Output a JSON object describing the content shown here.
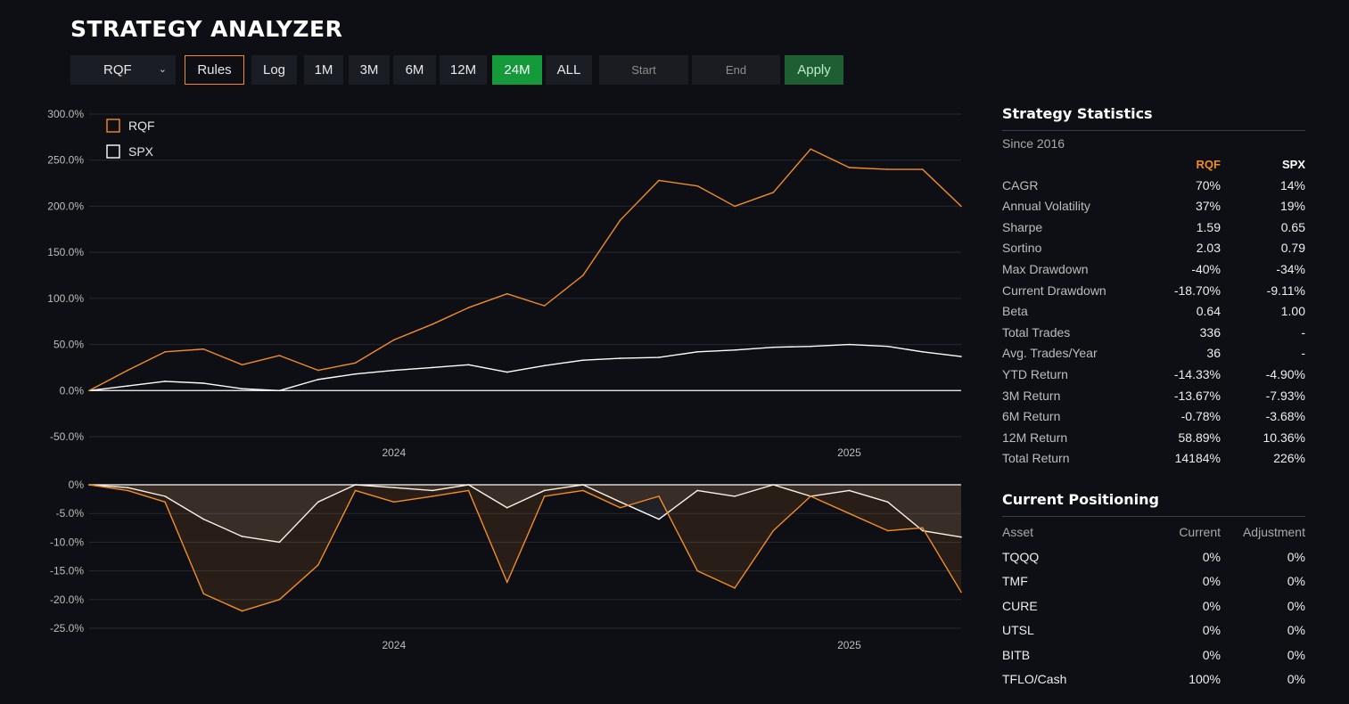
{
  "app": {
    "title": "STRATEGY ANALYZER"
  },
  "toolbar": {
    "strategy_select": "RQF",
    "rules": "Rules",
    "log": "Log",
    "ranges": [
      "1M",
      "3M",
      "6M",
      "12M",
      "24M",
      "ALL"
    ],
    "active_range": "24M",
    "start_placeholder": "Start",
    "end_placeholder": "End",
    "apply": "Apply"
  },
  "colors": {
    "rqf": "#f28c28",
    "spx": "#ffffff",
    "accent_green": "#149a3b",
    "background": "#0d0f15"
  },
  "icons": {
    "select_chevron": "chevron-down-icon"
  },
  "chart_data": [
    {
      "type": "line",
      "legend": [
        "RQF",
        "SPX"
      ],
      "legend_position": "top-left",
      "y_tick_labels": [
        "300.0%",
        "250.0%",
        "200.0%",
        "150.0%",
        "100.0%",
        "50.0%",
        "0.0%",
        "-50.0%"
      ],
      "ylim": [
        -50,
        300
      ],
      "x_tick_labels": [
        "2024",
        "2025"
      ],
      "x_range": [
        "2023-05",
        "2025-04"
      ],
      "grid": true,
      "series": [
        {
          "name": "RQF",
          "x": [
            "2023-05-01",
            "2023-06-01",
            "2023-07-01",
            "2023-08-01",
            "2023-09-01",
            "2023-10-01",
            "2023-11-01",
            "2023-12-01",
            "2024-01-01",
            "2024-02-01",
            "2024-03-01",
            "2024-04-01",
            "2024-05-01",
            "2024-06-01",
            "2024-07-01",
            "2024-08-01",
            "2024-09-01",
            "2024-10-01",
            "2024-11-01",
            "2024-12-01",
            "2025-01-01",
            "2025-02-01",
            "2025-03-01",
            "2025-04-01"
          ],
          "values": [
            0,
            22,
            42,
            45,
            28,
            38,
            22,
            30,
            55,
            72,
            90,
            105,
            92,
            125,
            185,
            228,
            222,
            200,
            215,
            262,
            242,
            240,
            240,
            200
          ]
        },
        {
          "name": "SPX",
          "x": [
            "2023-05-01",
            "2023-06-01",
            "2023-07-01",
            "2023-08-01",
            "2023-09-01",
            "2023-10-01",
            "2023-11-01",
            "2023-12-01",
            "2024-01-01",
            "2024-02-01",
            "2024-03-01",
            "2024-04-01",
            "2024-05-01",
            "2024-06-01",
            "2024-07-01",
            "2024-08-01",
            "2024-09-01",
            "2024-10-01",
            "2024-11-01",
            "2024-12-01",
            "2025-01-01",
            "2025-02-01",
            "2025-03-01",
            "2025-04-01"
          ],
          "values": [
            0,
            5,
            10,
            8,
            2,
            0,
            12,
            18,
            22,
            25,
            28,
            20,
            27,
            33,
            35,
            36,
            42,
            44,
            47,
            48,
            50,
            48,
            42,
            37
          ]
        }
      ]
    },
    {
      "type": "area",
      "y_tick_labels": [
        "0%",
        "-5.0%",
        "-10.0%",
        "-15.0%",
        "-20.0%",
        "-25.0%"
      ],
      "ylim": [
        -25,
        0
      ],
      "x_tick_labels": [
        "2024",
        "2025"
      ],
      "series": [
        {
          "name": "RQF",
          "x": [
            "2023-05-01",
            "2023-06-01",
            "2023-07-01",
            "2023-08-01",
            "2023-09-01",
            "2023-10-01",
            "2023-11-01",
            "2023-12-01",
            "2024-01-01",
            "2024-02-01",
            "2024-03-01",
            "2024-04-01",
            "2024-05-01",
            "2024-06-01",
            "2024-07-01",
            "2024-08-01",
            "2024-09-01",
            "2024-10-01",
            "2024-11-01",
            "2024-12-01",
            "2025-01-01",
            "2025-02-01",
            "2025-03-01",
            "2025-04-01"
          ],
          "values": [
            0,
            -1,
            -3,
            -19,
            -22,
            -20,
            -14,
            -1,
            -3,
            -2,
            -1,
            -17,
            -2,
            -1,
            -4,
            -2,
            -15,
            -18,
            -8,
            -2,
            -5,
            -8,
            -7.5,
            -18.7
          ]
        },
        {
          "name": "SPX",
          "x": [
            "2023-05-01",
            "2023-06-01",
            "2023-07-01",
            "2023-08-01",
            "2023-09-01",
            "2023-10-01",
            "2023-11-01",
            "2023-12-01",
            "2024-01-01",
            "2024-02-01",
            "2024-03-01",
            "2024-04-01",
            "2024-05-01",
            "2024-06-01",
            "2024-07-01",
            "2024-08-01",
            "2024-09-01",
            "2024-10-01",
            "2024-11-01",
            "2024-12-01",
            "2025-01-01",
            "2025-02-01",
            "2025-03-01",
            "2025-04-01"
          ],
          "values": [
            0,
            -0.5,
            -2,
            -6,
            -9,
            -10,
            -3,
            0,
            -0.5,
            -1,
            0,
            -4,
            -1,
            0,
            -3,
            -6,
            -1,
            -2,
            0,
            -2,
            -1,
            -3,
            -8,
            -9.11
          ]
        }
      ]
    }
  ],
  "stats": {
    "title": "Strategy Statistics",
    "since": "Since 2016",
    "col1": "RQF",
    "col2": "SPX",
    "rows": [
      [
        "CAGR",
        "70%",
        "14%"
      ],
      [
        "Annual Volatility",
        "37%",
        "19%"
      ],
      [
        "Sharpe",
        "1.59",
        "0.65"
      ],
      [
        "Sortino",
        "2.03",
        "0.79"
      ],
      [
        "Max Drawdown",
        "-40%",
        "-34%"
      ],
      [
        "Current Drawdown",
        "-18.70%",
        "-9.11%"
      ],
      [
        "Beta",
        "0.64",
        "1.00"
      ],
      [
        "Total Trades",
        "336",
        "-"
      ],
      [
        "Avg. Trades/Year",
        "36",
        "-"
      ],
      [
        "YTD Return",
        "-14.33%",
        "-4.90%"
      ],
      [
        "3M Return",
        "-13.67%",
        "-7.93%"
      ],
      [
        "6M Return",
        "-0.78%",
        "-3.68%"
      ],
      [
        "12M Return",
        "58.89%",
        "10.36%"
      ],
      [
        "Total Return",
        "14184%",
        "226%"
      ]
    ]
  },
  "positioning": {
    "title": "Current Positioning",
    "headers": [
      "Asset",
      "Current",
      "Adjustment"
    ],
    "rows": [
      [
        "TQQQ",
        "0%",
        "0%"
      ],
      [
        "TMF",
        "0%",
        "0%"
      ],
      [
        "CURE",
        "0%",
        "0%"
      ],
      [
        "UTSL",
        "0%",
        "0%"
      ],
      [
        "BITB",
        "0%",
        "0%"
      ],
      [
        "TFLO/Cash",
        "100%",
        "0%"
      ]
    ]
  }
}
